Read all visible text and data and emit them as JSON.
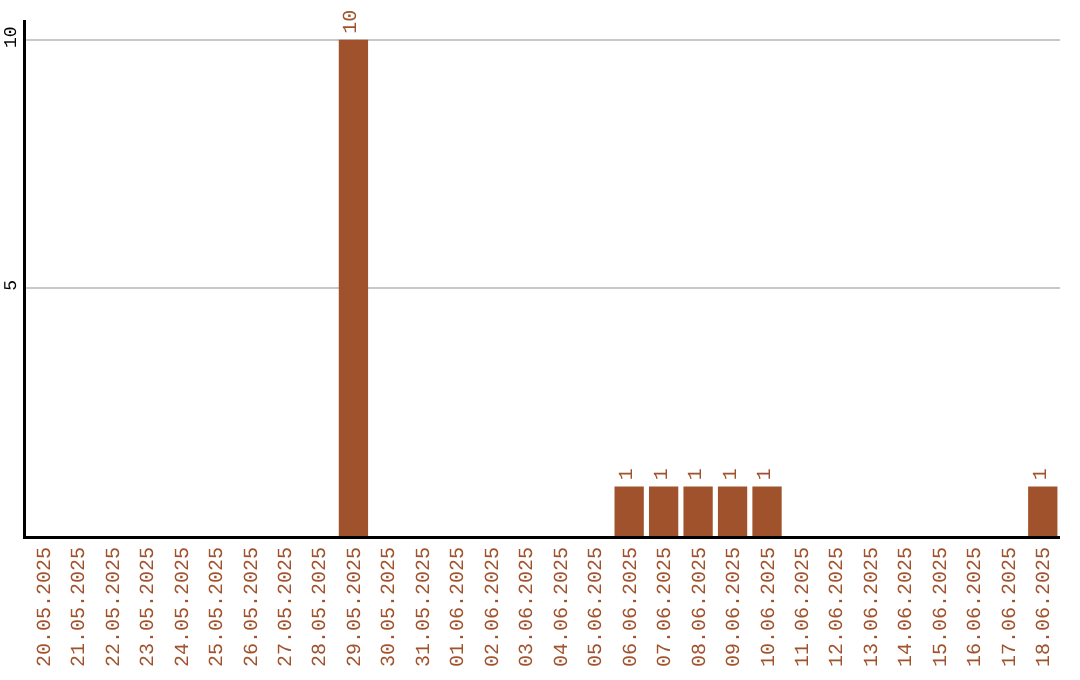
{
  "chart_data": {
    "type": "bar",
    "categories": [
      "20.05.2025",
      "21.05.2025",
      "22.05.2025",
      "23.05.2025",
      "24.05.2025",
      "25.05.2025",
      "26.05.2025",
      "27.05.2025",
      "28.05.2025",
      "29.05.2025",
      "30.05.2025",
      "31.05.2025",
      "01.06.2025",
      "02.06.2025",
      "03.06.2025",
      "04.06.2025",
      "05.06.2025",
      "06.06.2025",
      "07.06.2025",
      "08.06.2025",
      "09.06.2025",
      "10.06.2025",
      "11.06.2025",
      "12.06.2025",
      "13.06.2025",
      "14.06.2025",
      "15.06.2025",
      "16.06.2025",
      "17.06.2025",
      "18.06.2025"
    ],
    "values": [
      0,
      0,
      0,
      0,
      0,
      0,
      0,
      0,
      0,
      10,
      0,
      0,
      0,
      0,
      0,
      0,
      0,
      1,
      1,
      1,
      1,
      1,
      0,
      0,
      0,
      0,
      0,
      0,
      0,
      1
    ],
    "value_labels": [
      null,
      null,
      null,
      null,
      null,
      null,
      null,
      null,
      null,
      "10",
      null,
      null,
      null,
      null,
      null,
      null,
      null,
      "1",
      "1",
      "1",
      "1",
      "1",
      null,
      null,
      null,
      null,
      null,
      null,
      null,
      "1"
    ],
    "color": "#a0522d",
    "ylim": [
      0,
      10.4
    ],
    "yticks": [
      5,
      10
    ],
    "grid": "y",
    "legend": false
  }
}
